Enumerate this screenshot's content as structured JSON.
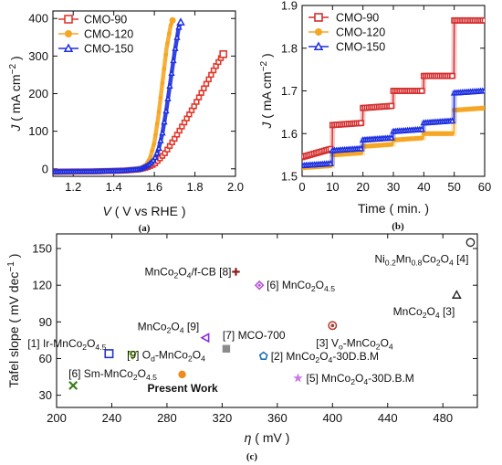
{
  "chart_data": [
    {
      "id": "a",
      "type": "line",
      "panel_label": "(a)",
      "xlabel": {
        "sym": "V",
        "rest": " ( V vs RHE )"
      },
      "ylabel": {
        "sym": "J",
        "rest": " ( mA cm",
        "sup": "−2",
        "tail": ")"
      },
      "xlim": [
        1.1,
        2.0
      ],
      "ylim": [
        -20,
        420
      ],
      "xticks": [
        1.2,
        1.4,
        1.6,
        1.8,
        2.0
      ],
      "xtick_labels": [
        "1.2",
        "1.4",
        "1.6",
        "1.8",
        "2.0"
      ],
      "yticks": [
        0,
        100,
        200,
        300,
        400
      ],
      "legend_position": "top-left",
      "series": [
        {
          "name": "CMO-90",
          "color": "#e0382c",
          "marker": "square",
          "x": [
            1.1,
            1.3,
            1.45,
            1.52,
            1.56,
            1.6,
            1.65,
            1.7,
            1.75,
            1.8,
            1.85,
            1.9,
            1.94
          ],
          "y": [
            -8,
            -7,
            -5,
            -2,
            3,
            12,
            40,
            80,
            125,
            170,
            220,
            270,
            305
          ]
        },
        {
          "name": "CMO-120",
          "color": "#f5a623",
          "marker": "circle",
          "x": [
            1.1,
            1.3,
            1.45,
            1.52,
            1.56,
            1.58,
            1.6,
            1.62,
            1.64,
            1.66,
            1.68,
            1.69
          ],
          "y": [
            -8,
            -7,
            -5,
            -1,
            10,
            30,
            70,
            140,
            230,
            320,
            380,
            395
          ]
        },
        {
          "name": "CMO-150",
          "color": "#1d2fe0",
          "marker": "triangle",
          "x": [
            1.1,
            1.3,
            1.45,
            1.53,
            1.57,
            1.6,
            1.62,
            1.64,
            1.66,
            1.68,
            1.7,
            1.72,
            1.73
          ],
          "y": [
            -8,
            -7,
            -5,
            -1,
            10,
            25,
            50,
            95,
            160,
            235,
            310,
            375,
            390
          ]
        }
      ]
    },
    {
      "id": "b",
      "type": "line",
      "panel_label": "(b)",
      "xlabel": {
        "sym": "",
        "rest": "Time ( min. )"
      },
      "ylabel": {
        "sym": "J",
        "rest": " ( mA cm",
        "sup": "−2",
        "tail": ")"
      },
      "xlim": [
        0,
        60
      ],
      "ylim": [
        1.5,
        1.9
      ],
      "xticks": [
        0,
        10,
        20,
        30,
        40,
        50,
        60
      ],
      "xtick_labels": [
        "0",
        "10",
        "20",
        "30",
        "40",
        "50",
        "60"
      ],
      "yticks": [
        1.5,
        1.6,
        1.7,
        1.8,
        1.9
      ],
      "legend_position": "top-left",
      "series": [
        {
          "name": "CMO-90",
          "color": "#d42f2f",
          "marker": "square",
          "x": [
            0,
            9.9,
            10,
            19.9,
            20,
            29.9,
            30,
            39.9,
            40,
            49.9,
            50,
            60
          ],
          "y": [
            1.545,
            1.565,
            1.62,
            1.625,
            1.66,
            1.665,
            1.7,
            1.7,
            1.735,
            1.735,
            1.865,
            1.865
          ]
        },
        {
          "name": "CMO-120",
          "color": "#f5a623",
          "marker": "circle",
          "x": [
            0,
            9.9,
            10,
            19.9,
            20,
            29.9,
            30,
            39.9,
            40,
            49.9,
            50,
            60
          ],
          "y": [
            1.52,
            1.525,
            1.55,
            1.555,
            1.57,
            1.575,
            1.585,
            1.59,
            1.6,
            1.6,
            1.655,
            1.66
          ]
        },
        {
          "name": "CMO-150",
          "color": "#1d2fe0",
          "marker": "triangle",
          "x": [
            0,
            9.9,
            10,
            19.9,
            20,
            29.9,
            30,
            39.9,
            40,
            49.9,
            50,
            60
          ],
          "y": [
            1.525,
            1.53,
            1.56,
            1.565,
            1.585,
            1.59,
            1.605,
            1.61,
            1.625,
            1.63,
            1.695,
            1.7
          ]
        }
      ]
    },
    {
      "id": "c",
      "type": "scatter",
      "panel_label": "(c)",
      "xlabel": {
        "sym": "η",
        "rest": " ( mV )"
      },
      "ylabel": {
        "sym": "",
        "rest": "Tafel slope ( mV dec",
        "sup": "−1",
        "tail": ")"
      },
      "xlim": [
        200,
        505
      ],
      "ylim": [
        20,
        162
      ],
      "xticks": [
        200,
        240,
        280,
        320,
        360,
        400,
        440,
        480
      ],
      "xtick_labels": [
        "200",
        "240",
        "280",
        "320",
        "360",
        "400",
        "440",
        "480"
      ],
      "yticks": [
        30,
        60,
        90,
        120,
        150
      ],
      "points": [
        {
          "x": 500,
          "y": 155,
          "marker": "circle-open",
          "color": "#222222",
          "label": [
            {
              "t": "Ni"
            },
            {
              "t": "0.2",
              "sub": 1
            },
            {
              "t": "Mn"
            },
            {
              "t": "0.8",
              "sub": 1
            },
            {
              "t": "Co"
            },
            {
              "t": "2",
              "sub": 1
            },
            {
              "t": "O"
            },
            {
              "t": "4",
              "sub": 1
            },
            {
              "t": " [4]"
            }
          ]
        },
        {
          "x": 330,
          "y": 131,
          "marker": "plus",
          "color": "#8b1a1a",
          "label": [
            {
              "t": "MnCo"
            },
            {
              "t": "2",
              "sub": 1
            },
            {
              "t": "O"
            },
            {
              "t": "4",
              "sub": 1
            },
            {
              "t": "/f-CB [8]"
            }
          ]
        },
        {
          "x": 347,
          "y": 120,
          "marker": "diamond",
          "color": "#b455d6",
          "label": [
            {
              "t": "[6] MnCo"
            },
            {
              "t": "2",
              "sub": 1
            },
            {
              "t": "O"
            },
            {
              "t": "4.5",
              "sub": 1
            }
          ]
        },
        {
          "x": 490,
          "y": 112,
          "marker": "triangle-open",
          "color": "#222222",
          "label": [
            {
              "t": "MnCo"
            },
            {
              "t": "2",
              "sub": 1
            },
            {
              "t": "O"
            },
            {
              "t": "4",
              "sub": 1
            },
            {
              "t": " [3]"
            }
          ]
        },
        {
          "x": 400,
          "y": 87,
          "marker": "circle-dot",
          "color": "#b03a2e",
          "label": [
            {
              "t": "[3] V"
            },
            {
              "t": "o",
              "sub": 1
            },
            {
              "t": "-MnCo"
            },
            {
              "t": "2",
              "sub": 1
            },
            {
              "t": "O"
            },
            {
              "t": "4",
              "sub": 1
            }
          ]
        },
        {
          "x": 308,
          "y": 77,
          "marker": "triangle-left",
          "color": "#8a2be2",
          "label": [
            {
              "t": "MnCo"
            },
            {
              "t": "2",
              "sub": 1
            },
            {
              "t": "O"
            },
            {
              "t": "4",
              "sub": 1
            },
            {
              "t": " [9]"
            }
          ]
        },
        {
          "x": 323,
          "y": 68,
          "marker": "square",
          "color": "#8a8a8a",
          "label": [
            {
              "t": "[7] MCO-700"
            }
          ]
        },
        {
          "x": 238,
          "y": 64,
          "marker": "square-open",
          "color": "#2233cc",
          "label": [
            {
              "t": "[1] Ir-MnCo"
            },
            {
              "t": "2",
              "sub": 1
            },
            {
              "t": "O"
            },
            {
              "t": "4.5",
              "sub": 1
            }
          ]
        },
        {
          "x": 255,
          "y": 63,
          "marker": "triangle-down",
          "color": "#88cc22",
          "label": [
            {
              "t": "[9] O"
            },
            {
              "t": "d",
              "sub": 1
            },
            {
              "t": "-MnCo"
            },
            {
              "t": "2",
              "sub": 1
            },
            {
              "t": "O"
            },
            {
              "t": "4",
              "sub": 1
            }
          ]
        },
        {
          "x": 350,
          "y": 62,
          "marker": "pentagon-open",
          "color": "#1f6fbf",
          "label": [
            {
              "t": "[2] MnCo"
            },
            {
              "t": "2",
              "sub": 1
            },
            {
              "t": "O"
            },
            {
              "t": "4",
              "sub": 1
            },
            {
              "t": "-30D.B.M"
            }
          ]
        },
        {
          "x": 291,
          "y": 47,
          "marker": "circle",
          "color": "#f08a1c",
          "label": [
            {
              "t": "Present Work",
              "bold": 1
            }
          ]
        },
        {
          "x": 375,
          "y": 44,
          "marker": "star",
          "color": "#cc7ae6",
          "label": [
            {
              "t": "[5] MnCo"
            },
            {
              "t": "2",
              "sub": 1
            },
            {
              "t": "O"
            },
            {
              "t": "4",
              "sub": 1
            },
            {
              "t": "-30D.B.M"
            }
          ]
        },
        {
          "x": 212,
          "y": 38,
          "marker": "x",
          "color": "#3a7d1e",
          "label": [
            {
              "t": "[6] Sm-MnCo"
            },
            {
              "t": "2",
              "sub": 1
            },
            {
              "t": "O"
            },
            {
              "t": "4.5",
              "sub": 1
            }
          ]
        }
      ]
    }
  ]
}
